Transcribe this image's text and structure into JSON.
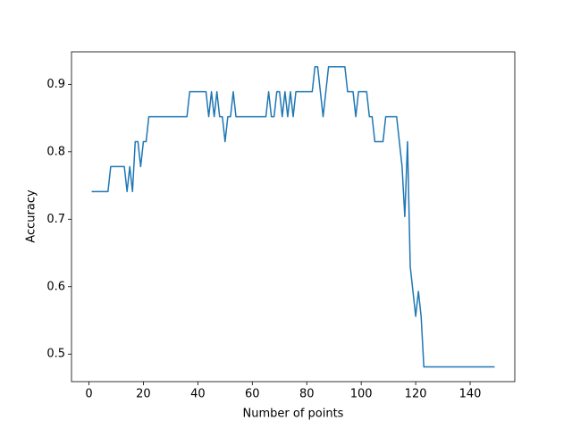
{
  "chart_data": {
    "type": "line",
    "x_label": "Number of points",
    "y_label": "Accuracy",
    "x": [
      1,
      2,
      3,
      4,
      5,
      6,
      7,
      8,
      9,
      10,
      11,
      12,
      13,
      14,
      15,
      16,
      17,
      18,
      19,
      20,
      21,
      22,
      23,
      24,
      25,
      26,
      27,
      28,
      29,
      30,
      31,
      32,
      33,
      34,
      35,
      36,
      37,
      38,
      39,
      40,
      41,
      42,
      43,
      44,
      45,
      46,
      47,
      48,
      49,
      50,
      51,
      52,
      53,
      54,
      55,
      56,
      57,
      58,
      59,
      60,
      61,
      62,
      63,
      64,
      65,
      66,
      67,
      68,
      69,
      70,
      71,
      72,
      73,
      74,
      75,
      76,
      77,
      78,
      79,
      80,
      81,
      82,
      83,
      84,
      85,
      86,
      87,
      88,
      89,
      90,
      91,
      92,
      93,
      94,
      95,
      96,
      97,
      98,
      99,
      100,
      101,
      102,
      103,
      104,
      105,
      106,
      107,
      108,
      109,
      110,
      111,
      112,
      113,
      114,
      115,
      116,
      117,
      118,
      119,
      120,
      121,
      122,
      123,
      124,
      125,
      126,
      127,
      128,
      129,
      130,
      131,
      132,
      133,
      134,
      135,
      136,
      137,
      138,
      139,
      140,
      141,
      142,
      143,
      144,
      145,
      146,
      147,
      148,
      149
    ],
    "series": [
      {
        "name": "Accuracy",
        "color": "#1f77b4",
        "values": [
          0.741,
          0.741,
          0.741,
          0.741,
          0.741,
          0.741,
          0.741,
          0.778,
          0.778,
          0.778,
          0.778,
          0.778,
          0.778,
          0.741,
          0.778,
          0.741,
          0.815,
          0.815,
          0.778,
          0.815,
          0.815,
          0.852,
          0.852,
          0.852,
          0.852,
          0.852,
          0.852,
          0.852,
          0.852,
          0.852,
          0.852,
          0.852,
          0.852,
          0.852,
          0.852,
          0.852,
          0.889,
          0.889,
          0.889,
          0.889,
          0.889,
          0.889,
          0.889,
          0.852,
          0.889,
          0.852,
          0.889,
          0.852,
          0.852,
          0.815,
          0.852,
          0.852,
          0.889,
          0.852,
          0.852,
          0.852,
          0.852,
          0.852,
          0.852,
          0.852,
          0.852,
          0.852,
          0.852,
          0.852,
          0.852,
          0.889,
          0.852,
          0.852,
          0.889,
          0.889,
          0.852,
          0.889,
          0.852,
          0.889,
          0.852,
          0.889,
          0.889,
          0.889,
          0.889,
          0.889,
          0.889,
          0.889,
          0.926,
          0.926,
          0.889,
          0.852,
          0.889,
          0.926,
          0.926,
          0.926,
          0.926,
          0.926,
          0.926,
          0.926,
          0.889,
          0.889,
          0.889,
          0.852,
          0.889,
          0.889,
          0.889,
          0.889,
          0.852,
          0.852,
          0.815,
          0.815,
          0.815,
          0.815,
          0.852,
          0.852,
          0.852,
          0.852,
          0.852,
          0.815,
          0.778,
          0.704,
          0.815,
          0.63,
          0.593,
          0.556,
          0.593,
          0.556,
          0.481,
          0.481,
          0.481,
          0.481,
          0.481,
          0.481,
          0.481,
          0.481,
          0.481,
          0.481,
          0.481,
          0.481,
          0.481,
          0.481,
          0.481,
          0.481,
          0.481,
          0.481,
          0.481,
          0.481,
          0.481,
          0.481,
          0.481,
          0.481,
          0.481,
          0.481,
          0.481
        ]
      }
    ],
    "xlim": [
      -6.4,
      156.4
    ],
    "xticks": [
      0,
      20,
      40,
      60,
      80,
      100,
      120,
      140
    ],
    "ylim": [
      0.4592,
      0.9482
    ],
    "yticks": [
      0.5,
      0.6,
      0.7,
      0.8,
      0.9
    ],
    "grid": false
  }
}
